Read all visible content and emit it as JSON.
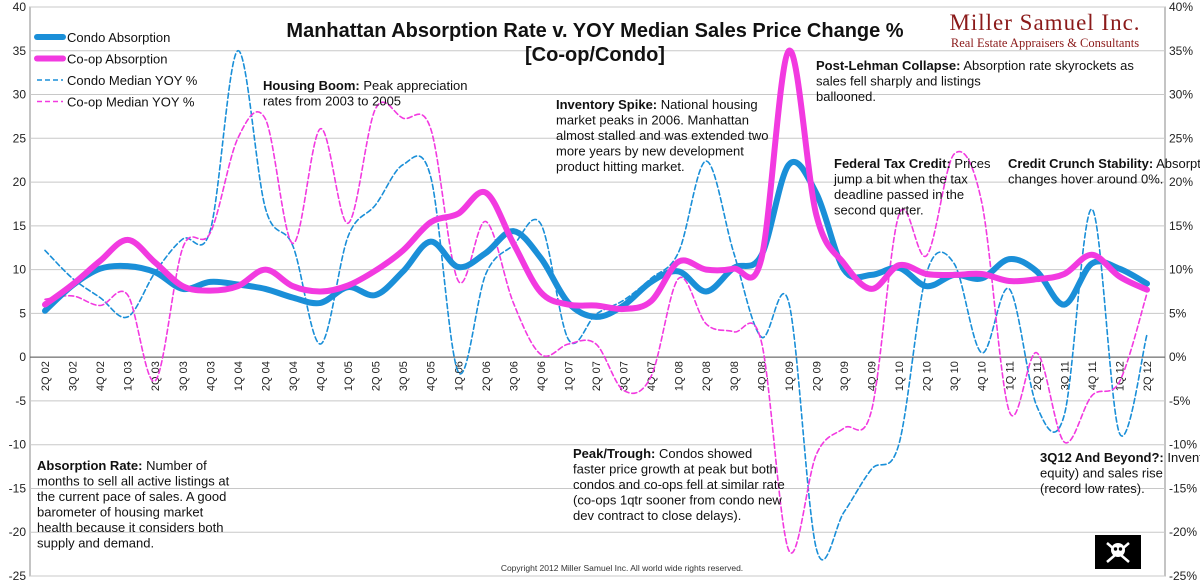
{
  "chart_data": {
    "type": "line",
    "title": [
      "Manhattan Absorption Rate v. YOY Median Sales Price Change %",
      "[Co-op/Condo]"
    ],
    "xlabel": "",
    "ylabel": "",
    "ylim": [
      -25,
      40
    ],
    "y2lim": [
      -25,
      40
    ],
    "grid": true,
    "legend_position": "top-left",
    "y_ticks": [
      "-25",
      "-20",
      "-15",
      "-10",
      "-5",
      "0",
      "5",
      "10",
      "15",
      "20",
      "25",
      "30",
      "35",
      "40"
    ],
    "y2_ticks": [
      "-25%",
      "-20%",
      "-15%",
      "-10%",
      "-5%",
      "0%",
      "5%",
      "10%",
      "15%",
      "20%",
      "25%",
      "30%",
      "35%",
      "40%"
    ],
    "categories": [
      "2Q 02",
      "3Q 02",
      "4Q 02",
      "1Q 03",
      "2Q 03",
      "3Q 03",
      "4Q 03",
      "1Q 04",
      "2Q 04",
      "3Q 04",
      "4Q 04",
      "1Q 05",
      "2Q 05",
      "3Q 05",
      "4Q 05",
      "1Q 06",
      "2Q 06",
      "3Q 06",
      "4Q 06",
      "1Q 07",
      "2Q 07",
      "3Q 07",
      "4Q 07",
      "1Q 08",
      "2Q 08",
      "3Q 08",
      "4Q 08",
      "1Q 09",
      "2Q 09",
      "3Q 09",
      "4Q 09",
      "1Q 10",
      "2Q 10",
      "3Q 10",
      "4Q 10",
      "1Q 11",
      "2Q 11",
      "3Q 11",
      "4Q 11",
      "1Q 12",
      "2Q 12"
    ],
    "series": [
      {
        "name": "Condo Absorption",
        "color": "#1a8fd8",
        "style": "solid-thick",
        "values": [
          5.3,
          8.2,
          10.1,
          10.4,
          9.7,
          7.8,
          8.6,
          8.3,
          7.8,
          6.8,
          6.2,
          8.0,
          7.1,
          9.8,
          13.2,
          10.3,
          11.9,
          14.4,
          11.3,
          6.2,
          4.6,
          5.9,
          8.6,
          9.8,
          7.5,
          10.2,
          11.6,
          22.0,
          18.7,
          10.0,
          9.4,
          10.2,
          8.1,
          9.4,
          9.0,
          11.2,
          9.8,
          6.0,
          10.7,
          10.1,
          8.4
        ]
      },
      {
        "name": "Co-op Absorption",
        "color": "#f23ae0",
        "style": "solid-thick",
        "values": [
          6.0,
          8.3,
          11.0,
          13.4,
          10.8,
          8.1,
          7.6,
          8.1,
          10.0,
          8.1,
          7.5,
          8.2,
          9.9,
          12.2,
          15.4,
          16.4,
          18.8,
          13.0,
          7.4,
          6.0,
          5.9,
          5.5,
          6.4,
          10.9,
          10.0,
          10.1,
          11.2,
          35.0,
          16.2,
          10.7,
          7.8,
          10.5,
          9.5,
          9.4,
          9.5,
          8.7,
          8.9,
          9.5,
          11.7,
          9.2,
          7.7
        ]
      },
      {
        "name": "Condo Median YOY %",
        "color": "#1a8fd8",
        "style": "dashed",
        "unit": "%",
        "values": [
          12.2,
          9.0,
          6.8,
          4.6,
          9.7,
          13.5,
          14.5,
          35.0,
          17.0,
          12.7,
          1.5,
          13.8,
          17.4,
          22.0,
          20.6,
          -1.7,
          9.5,
          12.8,
          15.2,
          2.0,
          4.9,
          6.5,
          9.0,
          12.0,
          22.4,
          11.9,
          2.3,
          6.2,
          -21.9,
          -17.7,
          -12.8,
          -9.9,
          9.6,
          10.7,
          0.5,
          7.8,
          -5.6,
          -6.6,
          16.9,
          -8.7,
          2.6
        ]
      },
      {
        "name": "Co-op Median YOY %",
        "color": "#f23ae0",
        "style": "dashed",
        "unit": "%",
        "values": [
          6.6,
          7.0,
          5.9,
          7.1,
          -2.7,
          12.5,
          14.2,
          25.0,
          27.2,
          13.0,
          26.1,
          15.3,
          28.4,
          27.3,
          26.1,
          8.7,
          15.5,
          6.2,
          0.3,
          1.5,
          1.5,
          -3.8,
          -2.2,
          9.0,
          3.8,
          2.9,
          1.8,
          -22.1,
          -11.1,
          -8.1,
          -6.1,
          16.3,
          11.6,
          23.2,
          17.7,
          -6.2,
          0.5,
          -9.7,
          -4.4,
          -2.8,
          7.3
        ]
      }
    ],
    "annotations": [
      {
        "title": "Housing Boom:",
        "lines": [
          "Peak appreciation",
          "rates from 2003 to 2005"
        ]
      },
      {
        "title": "Inventory Spike:",
        "lines": [
          "National housing",
          "market peaks in 2006.  Manhattan",
          "almost stalled and was extended two",
          "more years by new development",
          "product hitting market."
        ]
      },
      {
        "title": "Post-Lehman Collapse:",
        "lines": [
          "Absorption rate skyrockets as",
          "sales fell sharply and listings",
          "ballooned."
        ]
      },
      {
        "title": "Federal Tax Credit:",
        "lines": [
          "Prices",
          "jump a bit when the tax",
          "deadline passed in the",
          "second quarter."
        ]
      },
      {
        "title": "Credit Crunch Stability:",
        "lines": [
          "Absorption rate flat as price",
          "changes hover around 0%."
        ]
      },
      {
        "title": "Absorption Rate:",
        "lines": [
          "Number of",
          "months to sell all active listings at",
          "the current pace of sales.  A good",
          "barometer of housing market",
          "health because it considers both",
          "supply and demand."
        ]
      },
      {
        "title": "Peak/Trough:",
        "lines": [
          "Condos showed",
          "faster price growth at peak but both",
          "condos and co-ops fell at similar rate",
          "(co-ops 1qtr sooner from condo new",
          "dev contract to close delays)."
        ]
      },
      {
        "title": "3Q12 And Beyond?:",
        "lines": [
          "Inventory falls (low",
          "equity) and sales rise",
          "(record low rates)."
        ]
      }
    ],
    "brand": {
      "name": "Miller Samuel Inc.",
      "tagline": "Real Estate Appraisers & Consultants",
      "color": "#8b1a1a"
    },
    "copyright": "Copyright 2012 Miller Samuel Inc.  All world wide rights reserved."
  }
}
